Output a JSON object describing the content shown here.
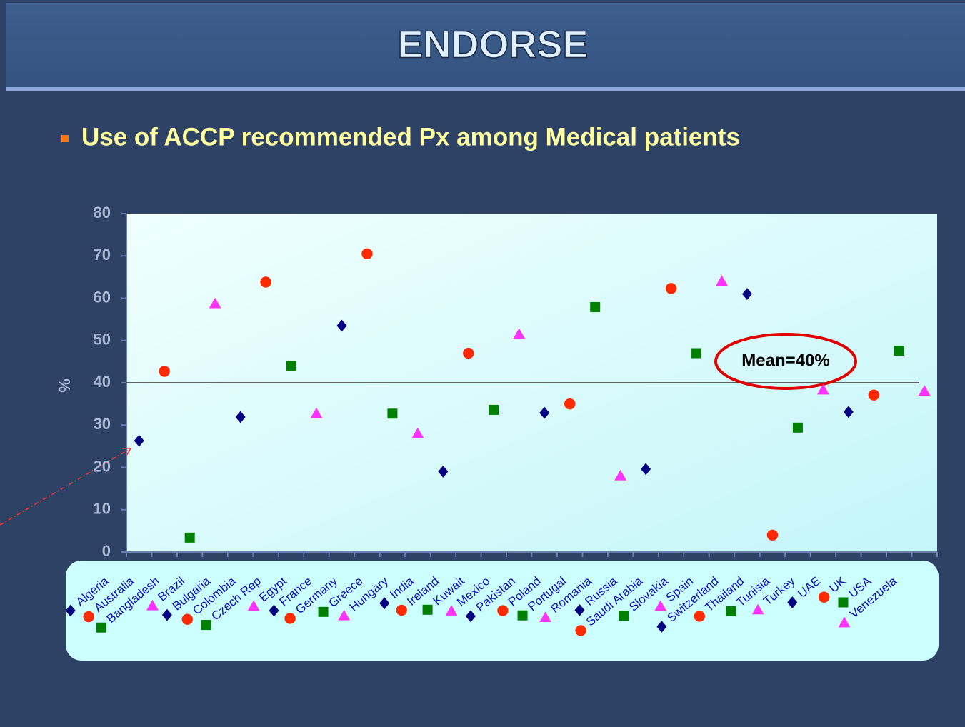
{
  "chart_data": {
    "type": "scatter",
    "title": "ENDORSE",
    "subtitle": "Use of ACCP recommended Px among Medical patients",
    "y_label": "%",
    "categories": [
      "Algeria",
      "Australia",
      "Bangladesh",
      "Brazil",
      "Bulgaria",
      "Colombia",
      "Czech Rep",
      "Egypt",
      "France",
      "Germany",
      "Greece",
      "Hungary",
      "India",
      "Ireland",
      "Kuwait",
      "Mexico",
      "Pakistan",
      "Poland",
      "Portugal",
      "Romania",
      "Russia",
      "Saudi Arabia",
      "Slovakia",
      "Spain",
      "Switzerland",
      "Thailand",
      "Tunisia",
      "Turkey",
      "UAE",
      "UK",
      "USA",
      "Venezuela"
    ],
    "values": [
      26.3,
      42.7,
      3.4,
      58.7,
      31.9,
      63.8,
      44,
      32.7,
      53.5,
      70.5,
      32.7,
      28,
      19,
      47,
      33.6,
      51.5,
      32.9,
      35,
      57.9,
      18,
      19.6,
      62.3,
      47,
      64,
      61,
      4,
      29.4,
      38.3,
      33.1,
      37.1,
      47.6,
      38
    ],
    "markers": [
      {
        "shape": "diamond",
        "color": "#000080"
      },
      {
        "shape": "circle",
        "color": "#ff2a00"
      },
      {
        "shape": "square",
        "color": "#008000"
      },
      {
        "shape": "triangle",
        "color": "#ff33ff"
      }
    ],
    "ylim": [
      0,
      80
    ],
    "yticks": [
      0,
      10,
      20,
      30,
      40,
      50,
      60,
      70,
      80
    ],
    "mean": 40,
    "mean_label": "Mean=40%"
  }
}
